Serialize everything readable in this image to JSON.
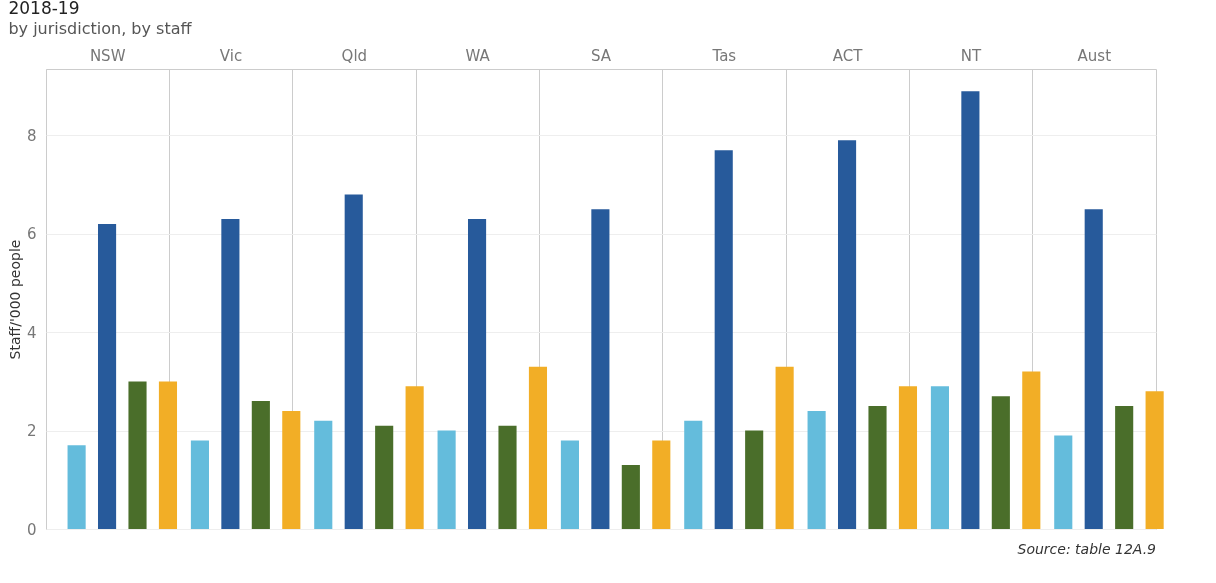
{
  "chart_data": {
    "type": "bar",
    "title": "2018-19",
    "subtitle": "by jurisdiction, by staff",
    "ylabel": "Staff/'000 people",
    "categories": [
      "NSW",
      "Vic",
      "Qld",
      "WA",
      "SA",
      "Tas",
      "ACT",
      "NT",
      "Aust"
    ],
    "series": [
      {
        "color": "#64bcdc",
        "values": [
          1.7,
          1.8,
          2.2,
          2.0,
          1.8,
          2.2,
          2.4,
          2.9,
          1.9
        ]
      },
      {
        "color": "#275a9b",
        "values": [
          6.2,
          6.3,
          6.8,
          6.3,
          6.5,
          7.7,
          7.9,
          8.9,
          6.5
        ]
      },
      {
        "color": "#4a6e2a",
        "values": [
          3.0,
          2.6,
          2.1,
          2.1,
          1.3,
          2.0,
          2.5,
          2.7,
          2.5
        ]
      },
      {
        "color": "#f2ae26",
        "values": [
          3.0,
          2.4,
          2.9,
          3.3,
          1.8,
          3.3,
          2.9,
          3.2,
          2.8
        ]
      }
    ],
    "ylim": [
      0,
      9.35
    ],
    "yticks": [
      0,
      2,
      4,
      6,
      8
    ],
    "grid": "y",
    "legend": false,
    "annotations": [
      "Source: table 12A.9"
    ]
  }
}
